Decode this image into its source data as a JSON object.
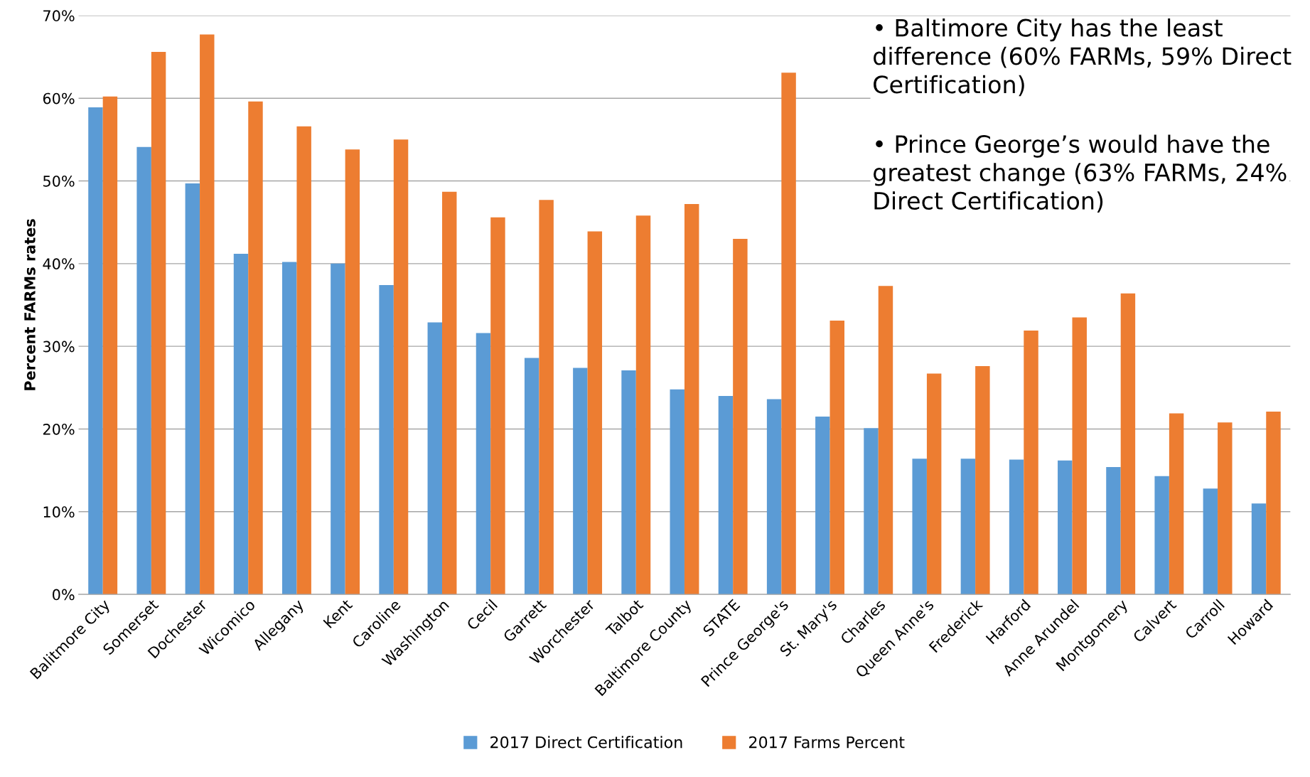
{
  "chart_data": {
    "type": "bar",
    "ylabel": "Percent FARMs rates",
    "categories": [
      "Balitmore City",
      "Somerset",
      "Dochester",
      "Wicomico",
      "Allegany",
      "Kent",
      "Caroline",
      "Washington",
      "Cecil",
      "Garrett",
      "Worchester",
      "Talbot",
      "Baltimore County",
      "STATE",
      "Prince George's",
      "St. Mary's",
      "Charles",
      "Queen Anne's",
      "Frederick",
      "Harford",
      "Anne Arundel",
      "Montgomery",
      "Calvert",
      "Carroll",
      "Howard"
    ],
    "series": [
      {
        "name": "2017 Direct Certification",
        "color": "#5b9bd5",
        "values": [
          58.9,
          54.1,
          49.7,
          41.2,
          40.2,
          40.0,
          37.4,
          32.9,
          31.6,
          28.6,
          27.4,
          27.1,
          24.8,
          24.0,
          23.6,
          21.5,
          20.1,
          16.4,
          16.4,
          16.3,
          16.2,
          15.4,
          14.3,
          12.8,
          11.0
        ]
      },
      {
        "name": "2017 Farms Percent",
        "color": "#ed7d31",
        "values": [
          60.2,
          65.6,
          67.7,
          59.6,
          56.6,
          53.8,
          55.0,
          48.7,
          45.6,
          47.7,
          43.9,
          45.8,
          47.2,
          43.0,
          63.1,
          33.1,
          37.3,
          26.7,
          27.6,
          31.9,
          33.5,
          36.4,
          21.9,
          20.8,
          22.1
        ]
      }
    ],
    "ylim": [
      0,
      70
    ],
    "yticks": [
      {
        "value": 0,
        "label": "0%"
      },
      {
        "value": 10,
        "label": "10%"
      },
      {
        "value": 20,
        "label": "20%"
      },
      {
        "value": 30,
        "label": "30%"
      },
      {
        "value": 40,
        "label": "40%"
      },
      {
        "value": 50,
        "label": "50%"
      },
      {
        "value": 60,
        "label": "60%"
      },
      {
        "value": 70,
        "label": "70%"
      }
    ],
    "grid": "y",
    "legend": "bottom",
    "annotations": [
      "• Baltimore City has the least difference (60% FARMs, 59% Direct Certification)",
      "• Prince George’s would have the greatest change (63% FARMs, 24% Direct Certification)"
    ]
  }
}
